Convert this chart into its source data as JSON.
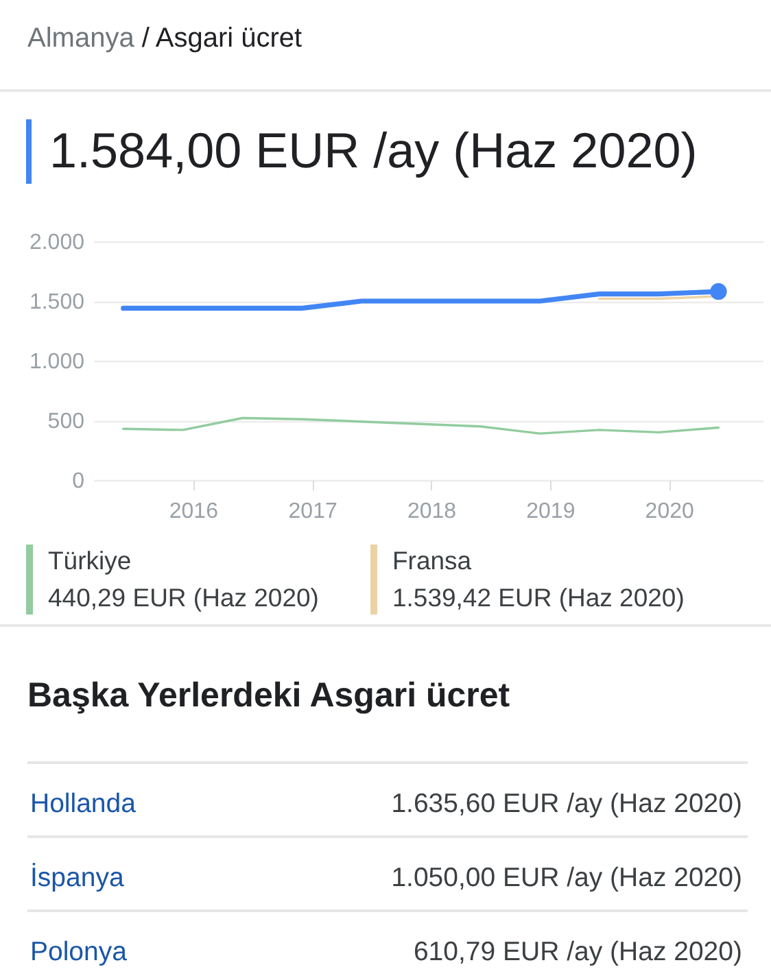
{
  "chart_data": {
    "type": "line",
    "subtitle": "Almanya / Asgari ücret",
    "title": "1.584,00 EUR /ay (Haz 2020)",
    "x": [
      "2015-06",
      "2015-12",
      "2016-06",
      "2016-12",
      "2017-06",
      "2017-12",
      "2018-06",
      "2018-12",
      "2019-06",
      "2019-12",
      "2020-06"
    ],
    "series": [
      {
        "color": "#4285f4",
        "values": [
          1440,
          1440,
          1440,
          1440,
          1500,
          1500,
          1500,
          1500,
          1560,
          1560,
          1580
        ]
      },
      {
        "name": "Türkiye",
        "color": "#92cc9f",
        "values": [
          430,
          420,
          520,
          510,
          490,
          470,
          450,
          390,
          420,
          400,
          440
        ]
      },
      {
        "name": "Fransa",
        "color": "#ebd3a6",
        "values": [
          null,
          null,
          null,
          null,
          null,
          null,
          null,
          null,
          1520,
          1520,
          1540
        ]
      }
    ],
    "xlim": [
      "2015-03-01",
      "2020-10-15"
    ],
    "xticks": [
      "2016",
      "2017",
      "2018",
      "2019",
      "2020"
    ],
    "ylim": [
      0,
      2000
    ],
    "yticks": [
      {
        "value": 0,
        "label": "0"
      },
      {
        "value": 500,
        "label": "500"
      },
      {
        "value": 1000,
        "label": "1.000"
      },
      {
        "value": 1500,
        "label": "1.500"
      },
      {
        "value": 2000,
        "label": "2.000"
      }
    ],
    "grid": "y",
    "legend": "bottom",
    "annotations": [
      "440,29 EUR (Haz 2020)",
      "1.539,42 EUR (Haz 2020)",
      "Başka Yerlerdeki Asgari ücret",
      "Hollanda",
      "1.635,60 EUR /ay (Haz 2020)",
      "İspanya",
      "1.050,00 EUR /ay (Haz 2020)",
      "Polonya",
      "610,79 EUR /ay (Haz 2020)"
    ]
  }
}
